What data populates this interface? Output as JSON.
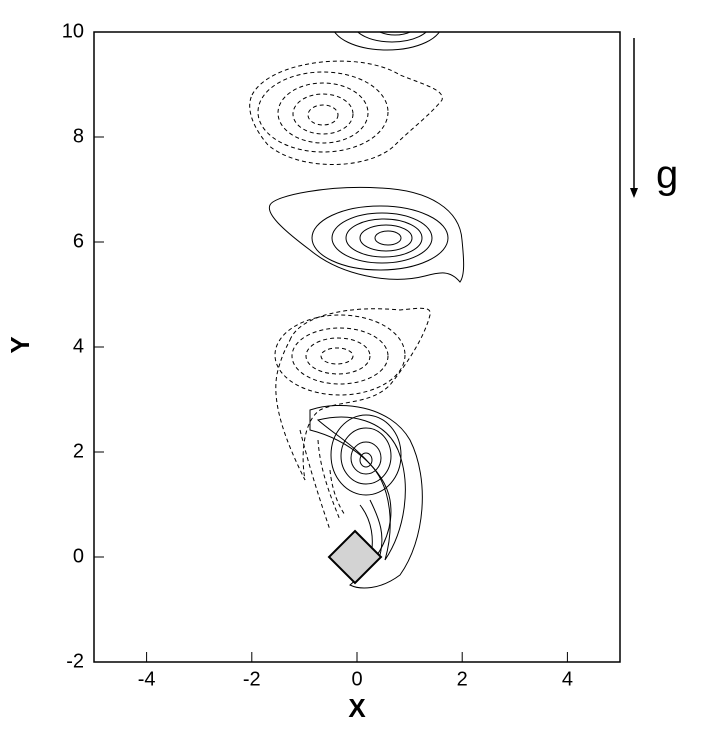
{
  "chart_data": {
    "type": "contour",
    "xlabel": "X",
    "ylabel": "Y",
    "annotation": "g",
    "xlim": [
      -5,
      5
    ],
    "ylim": [
      -2,
      10
    ],
    "xticks": [
      -4,
      -2,
      0,
      2,
      4
    ],
    "yticks": [
      -2,
      0,
      2,
      4,
      6,
      8,
      10
    ]
  }
}
